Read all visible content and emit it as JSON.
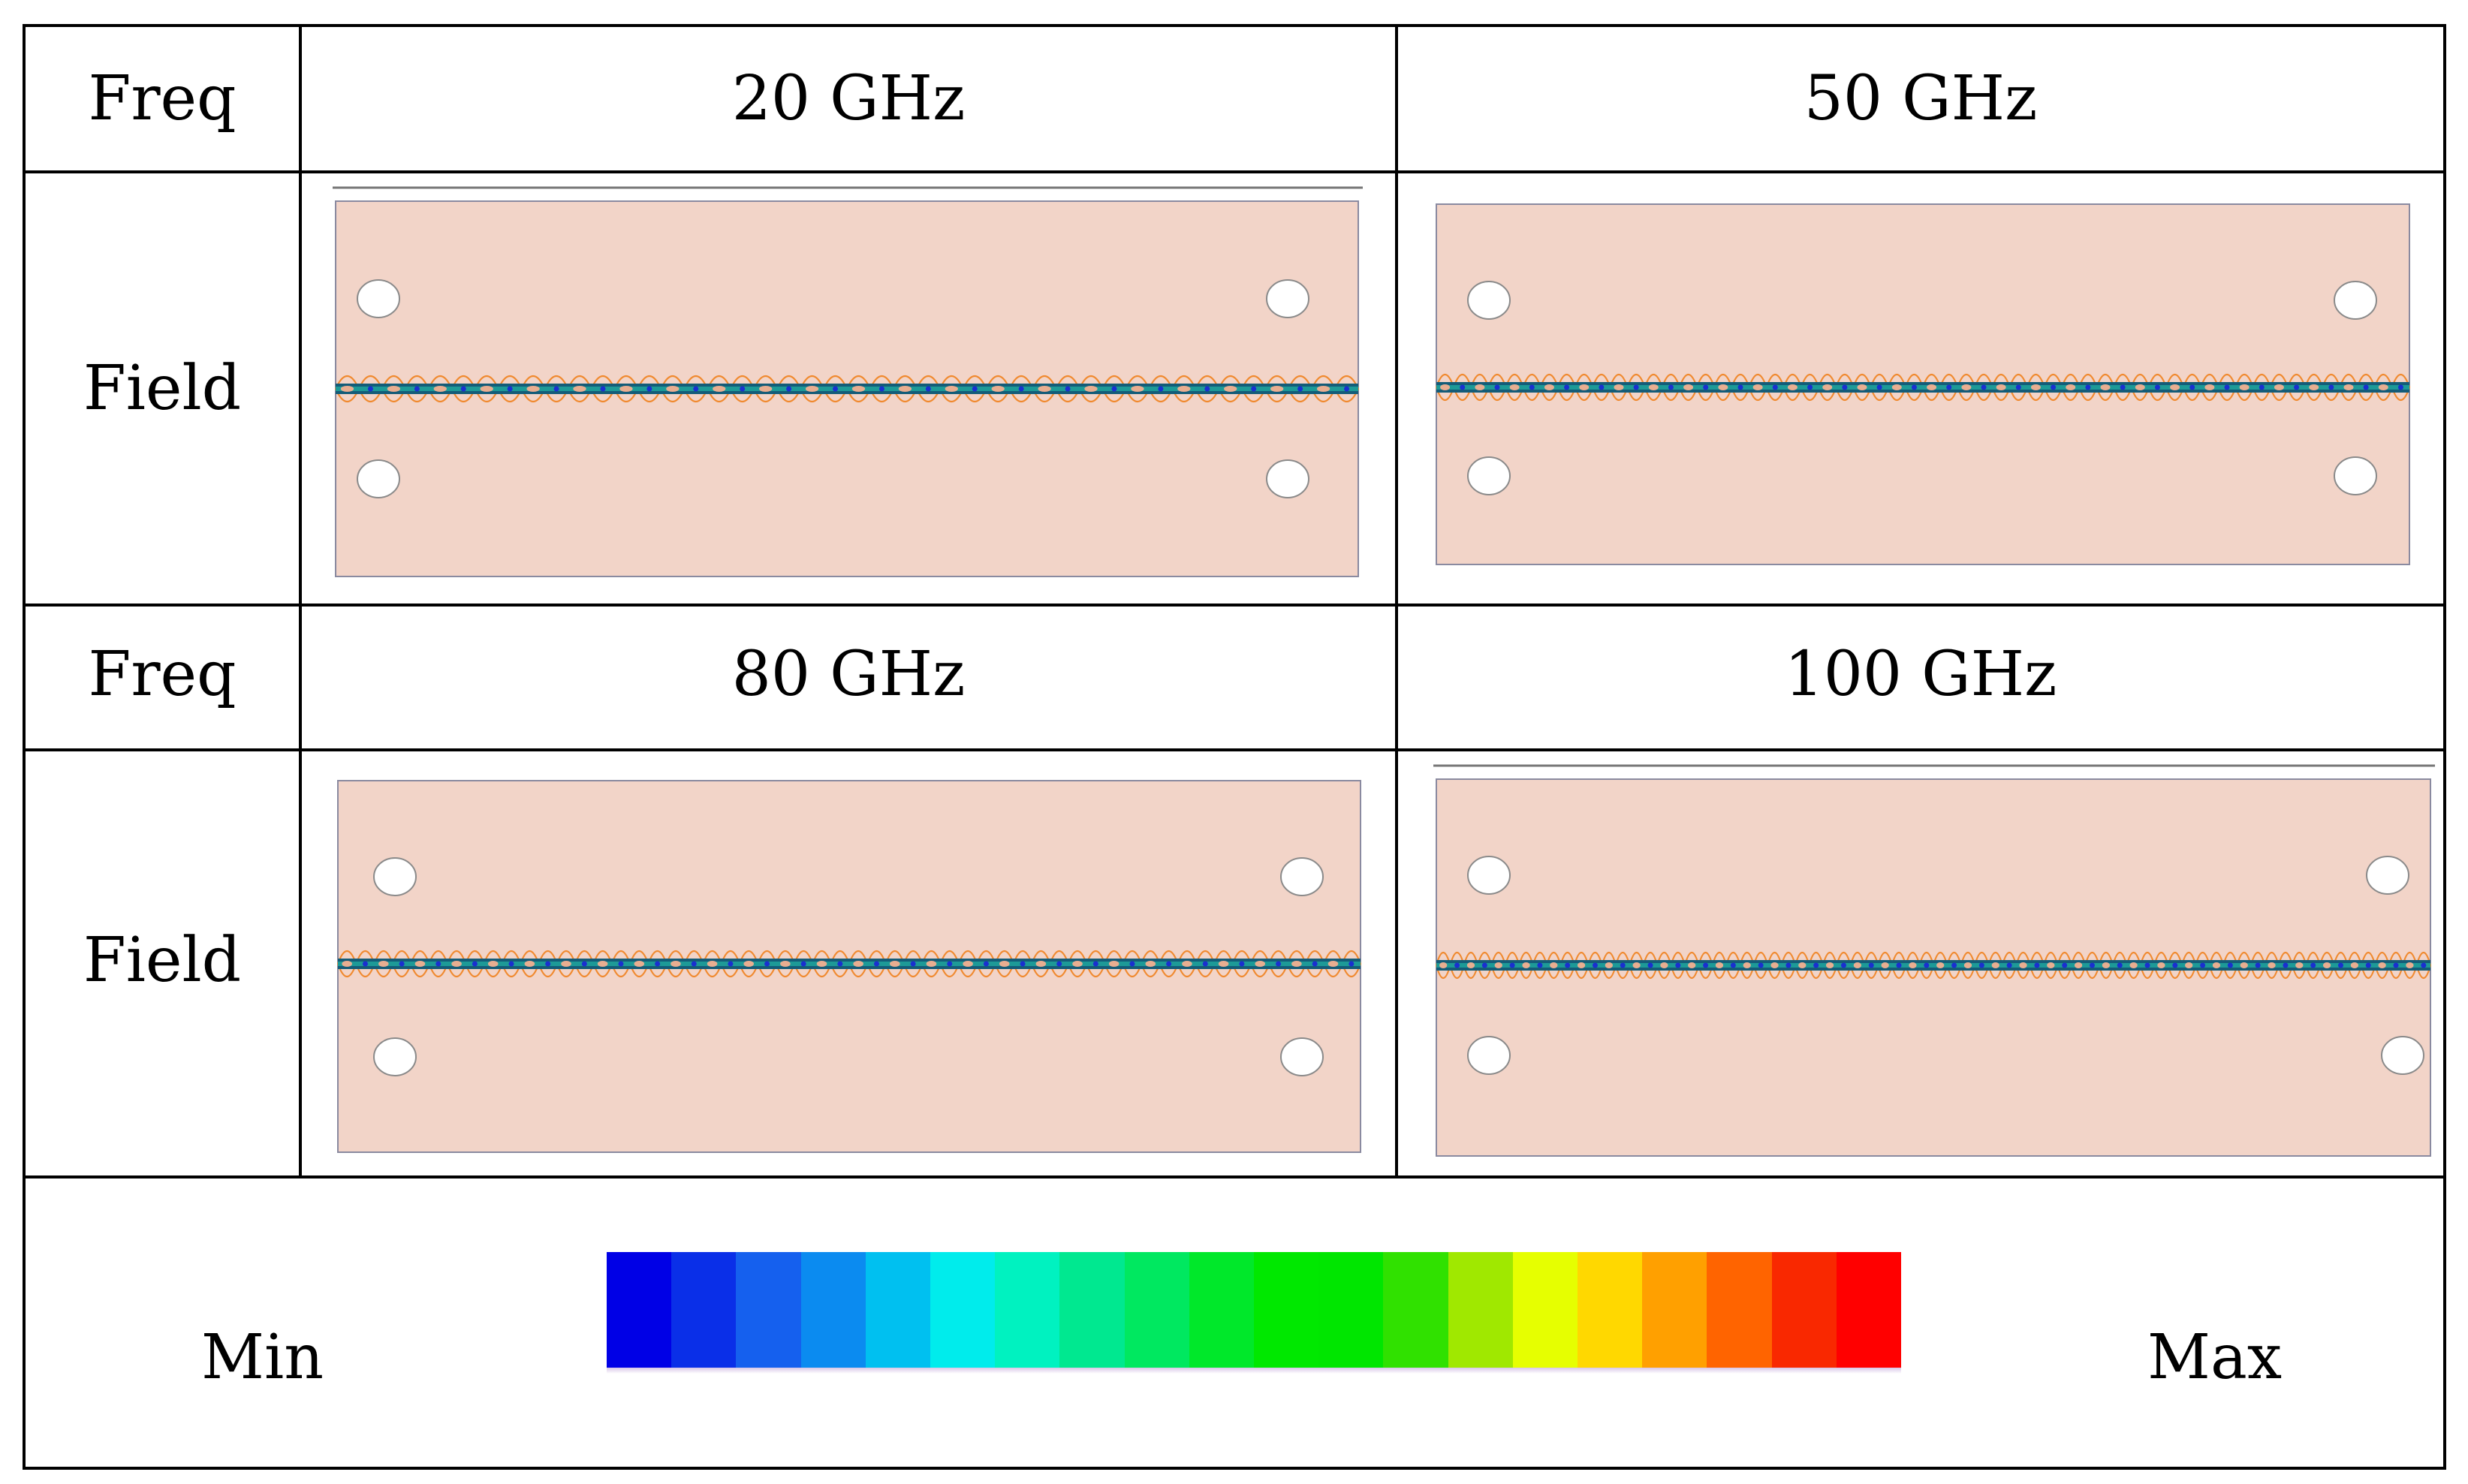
{
  "table": {
    "rows": [
      {
        "row_label": "Freq",
        "cells": [
          "20 GHz",
          "50 GHz"
        ]
      },
      {
        "row_label": "Field",
        "cells": [
          "field-plot-20ghz",
          "field-plot-50ghz"
        ]
      },
      {
        "row_label": "Freq",
        "cells": [
          "80 GHz",
          "100 GHz"
        ]
      },
      {
        "row_label": "Field",
        "cells": [
          "field-plot-80ghz",
          "field-plot-100ghz"
        ]
      }
    ]
  },
  "legend": {
    "min_label": "Min",
    "max_label": "Max",
    "colors": [
      "#0000e6",
      "#0a2fe8",
      "#1560ee",
      "#0b8bf0",
      "#00c0f0",
      "#00ecec",
      "#00f2c0",
      "#00e890",
      "#00e860",
      "#00e82a",
      "#00e800",
      "#00e600",
      "#30e100",
      "#a0e800",
      "#e6ff00",
      "#ffd800",
      "#ffa000",
      "#ff6400",
      "#f92800",
      "#ff0000"
    ]
  },
  "colors": {
    "board_fill": "#f2d4c8",
    "board_edge": "#8a8aa0",
    "trace_dark": "#145c78",
    "trace_teal": "#1ea59c",
    "ripple": "#f08a30",
    "hot_spot": "#ffb090",
    "node_blue": "#1a2fd0"
  }
}
